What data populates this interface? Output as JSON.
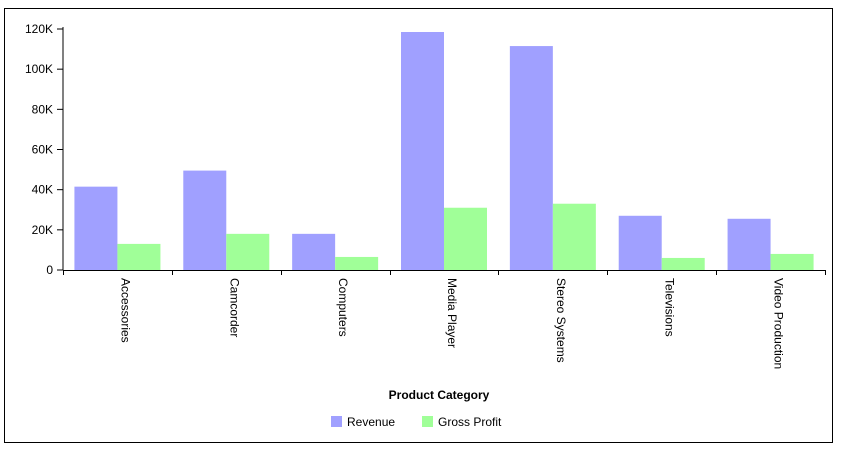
{
  "chart_data": {
    "type": "bar",
    "title": "",
    "xlabel": "Product Category",
    "ylabel": "",
    "categories": [
      "Accessories",
      "Camcorder",
      "Computers",
      "Media Player",
      "Stereo Systems",
      "Televisions",
      "Video Production"
    ],
    "series": [
      {
        "name": "Revenue",
        "color": "#a0a0ff",
        "values": [
          41500,
          49500,
          18000,
          118500,
          111500,
          27000,
          25500
        ]
      },
      {
        "name": "Gross Profit",
        "color": "#a0ff98",
        "values": [
          13000,
          18000,
          6500,
          31000,
          33000,
          6000,
          8000
        ]
      }
    ],
    "ylim": [
      0,
      120000
    ],
    "yticks": [
      {
        "value": 0,
        "label": "0"
      },
      {
        "value": 20000,
        "label": "20K"
      },
      {
        "value": 40000,
        "label": "40K"
      },
      {
        "value": 60000,
        "label": "60K"
      },
      {
        "value": 80000,
        "label": "80K"
      },
      {
        "value": 100000,
        "label": "100K"
      },
      {
        "value": 120000,
        "label": "120K"
      }
    ],
    "grid": false,
    "legend": "bottom-center"
  }
}
